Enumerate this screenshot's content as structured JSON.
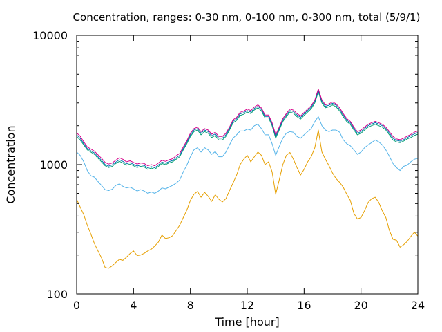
{
  "chart_data": {
    "type": "line",
    "title": "Concentration, ranges: 0-30 nm, 0-100 nm, 0-300 nm, total (5/9/1)",
    "xlabel": "Time [hour]",
    "ylabel": "Concentration",
    "xlim": [
      0,
      24
    ],
    "ylim": [
      100,
      10000
    ],
    "yscale": "log",
    "grid": false,
    "legend": "none",
    "x_ticks": [
      0,
      4,
      8,
      12,
      16,
      20,
      24
    ],
    "x_tick_labels": [
      "0",
      "4",
      "8",
      "12",
      "16",
      "20",
      "24"
    ],
    "y_ticks": [
      100,
      1000,
      10000
    ],
    "y_tick_labels": [
      "100",
      "1000",
      "10000"
    ],
    "series": [
      {
        "color": "#e69f00",
        "x": [
          0,
          0.25,
          0.5,
          0.75,
          1,
          1.25,
          1.5,
          1.75,
          2,
          2.25,
          2.5,
          2.75,
          3,
          3.25,
          3.5,
          3.75,
          4,
          4.25,
          4.5,
          4.75,
          5,
          5.25,
          5.5,
          5.75,
          6,
          6.25,
          6.5,
          6.75,
          7,
          7.25,
          7.5,
          7.75,
          8,
          8.25,
          8.5,
          8.75,
          9,
          9.25,
          9.5,
          9.75,
          10,
          10.25,
          10.5,
          10.75,
          11,
          11.25,
          11.5,
          11.75,
          12,
          12.25,
          12.5,
          12.75,
          13,
          13.25,
          13.5,
          13.75,
          14,
          14.25,
          14.5,
          14.75,
          15,
          15.25,
          15.5,
          15.75,
          16,
          16.25,
          16.5,
          16.75,
          17,
          17.25,
          17.5,
          17.75,
          18,
          18.25,
          18.5,
          18.75,
          19,
          19.25,
          19.5,
          19.75,
          20,
          20.25,
          20.5,
          20.75,
          21,
          21.25,
          21.5,
          21.75,
          22,
          22.25,
          22.5,
          22.75,
          23,
          23.25,
          23.5,
          23.75,
          24
        ],
        "y": [
          540,
          470,
          410,
          340,
          290,
          245,
          215,
          190,
          160,
          158,
          165,
          175,
          185,
          182,
          192,
          205,
          215,
          198,
          200,
          206,
          215,
          222,
          235,
          252,
          285,
          268,
          272,
          282,
          310,
          340,
          390,
          445,
          530,
          590,
          620,
          560,
          610,
          570,
          520,
          585,
          540,
          515,
          545,
          630,
          720,
          830,
          1000,
          1100,
          1180,
          1050,
          1150,
          1250,
          1180,
          1000,
          1050,
          880,
          590,
          760,
          1000,
          1180,
          1240,
          1100,
          950,
          830,
          920,
          1050,
          1150,
          1350,
          1850,
          1250,
          1100,
          980,
          860,
          780,
          730,
          670,
          590,
          530,
          420,
          380,
          390,
          440,
          510,
          545,
          560,
          510,
          440,
          390,
          310,
          265,
          260,
          230,
          240,
          255,
          278,
          300,
          280
        ]
      },
      {
        "color": "#56b4e9",
        "x": [
          0,
          0.25,
          0.5,
          0.75,
          1,
          1.25,
          1.5,
          1.75,
          2,
          2.25,
          2.5,
          2.75,
          3,
          3.25,
          3.5,
          3.75,
          4,
          4.25,
          4.5,
          4.75,
          5,
          5.25,
          5.5,
          5.75,
          6,
          6.25,
          6.5,
          6.75,
          7,
          7.25,
          7.5,
          7.75,
          8,
          8.25,
          8.5,
          8.75,
          9,
          9.25,
          9.5,
          9.75,
          10,
          10.25,
          10.5,
          10.75,
          11,
          11.25,
          11.5,
          11.75,
          12,
          12.25,
          12.5,
          12.75,
          13,
          13.25,
          13.5,
          13.75,
          14,
          14.25,
          14.5,
          14.75,
          15,
          15.25,
          15.5,
          15.75,
          16,
          16.25,
          16.5,
          16.75,
          17,
          17.25,
          17.5,
          17.75,
          18,
          18.25,
          18.5,
          18.75,
          19,
          19.25,
          19.5,
          19.75,
          20,
          20.25,
          20.5,
          20.75,
          21,
          21.25,
          21.5,
          21.75,
          22,
          22.25,
          22.5,
          22.75,
          23,
          23.25,
          23.5,
          23.75,
          24
        ],
        "y": [
          1250,
          1180,
          1050,
          900,
          820,
          800,
          740,
          690,
          640,
          630,
          645,
          690,
          710,
          680,
          660,
          670,
          650,
          625,
          640,
          625,
          600,
          615,
          600,
          625,
          660,
          650,
          670,
          690,
          720,
          760,
          880,
          990,
          1150,
          1300,
          1350,
          1250,
          1350,
          1300,
          1200,
          1260,
          1150,
          1150,
          1250,
          1420,
          1600,
          1700,
          1820,
          1820,
          1880,
          1850,
          2000,
          2050,
          1900,
          1700,
          1700,
          1450,
          1180,
          1380,
          1600,
          1750,
          1800,
          1780,
          1650,
          1600,
          1700,
          1800,
          1900,
          2150,
          2350,
          2000,
          1850,
          1800,
          1850,
          1850,
          1780,
          1560,
          1450,
          1400,
          1300,
          1200,
          1250,
          1350,
          1420,
          1480,
          1550,
          1500,
          1420,
          1300,
          1160,
          1020,
          950,
          900,
          970,
          990,
          1050,
          1100,
          1120
        ]
      },
      {
        "color": "#009e73",
        "x": [
          0,
          0.25,
          0.5,
          0.75,
          1,
          1.25,
          1.5,
          1.75,
          2,
          2.25,
          2.5,
          2.75,
          3,
          3.25,
          3.5,
          3.75,
          4,
          4.25,
          4.5,
          4.75,
          5,
          5.25,
          5.5,
          5.75,
          6,
          6.25,
          6.5,
          6.75,
          7,
          7.25,
          7.5,
          7.75,
          8,
          8.25,
          8.5,
          8.75,
          9,
          9.25,
          9.5,
          9.75,
          10,
          10.25,
          10.5,
          10.75,
          11,
          11.25,
          11.5,
          11.75,
          12,
          12.25,
          12.5,
          12.75,
          13,
          13.25,
          13.5,
          13.75,
          14,
          14.25,
          14.5,
          14.75,
          15,
          15.25,
          15.5,
          15.75,
          16,
          16.25,
          16.5,
          16.75,
          17,
          17.25,
          17.5,
          17.75,
          18,
          18.25,
          18.5,
          18.75,
          19,
          19.25,
          19.5,
          19.75,
          20,
          20.25,
          20.5,
          20.75,
          21,
          21.25,
          21.5,
          21.75,
          22,
          22.25,
          22.5,
          22.75,
          23,
          23.25,
          23.5,
          23.75,
          24
        ],
        "y": [
          1650,
          1550,
          1420,
          1300,
          1250,
          1200,
          1120,
          1050,
          980,
          950,
          970,
          1020,
          1060,
          1030,
          990,
          1010,
          980,
          950,
          970,
          960,
          920,
          940,
          920,
          970,
          1020,
          1000,
          1030,
          1050,
          1100,
          1150,
          1300,
          1450,
          1650,
          1800,
          1850,
          1700,
          1800,
          1750,
          1620,
          1680,
          1550,
          1550,
          1650,
          1850,
          2100,
          2200,
          2400,
          2450,
          2550,
          2480,
          2650,
          2750,
          2600,
          2300,
          2300,
          2000,
          1600,
          1850,
          2150,
          2350,
          2550,
          2500,
          2350,
          2250,
          2400,
          2550,
          2700,
          3000,
          3650,
          3000,
          2750,
          2800,
          2900,
          2800,
          2600,
          2350,
          2150,
          2050,
          1850,
          1700,
          1750,
          1850,
          1950,
          2000,
          2050,
          2000,
          1950,
          1850,
          1700,
          1550,
          1500,
          1480,
          1520,
          1580,
          1620,
          1680,
          1720
        ]
      },
      {
        "color": "#0072b2",
        "x": [
          0,
          0.25,
          0.5,
          0.75,
          1,
          1.25,
          1.5,
          1.75,
          2,
          2.25,
          2.5,
          2.75,
          3,
          3.25,
          3.5,
          3.75,
          4,
          4.25,
          4.5,
          4.75,
          5,
          5.25,
          5.5,
          5.75,
          6,
          6.25,
          6.5,
          6.75,
          7,
          7.25,
          7.5,
          7.75,
          8,
          8.25,
          8.5,
          8.75,
          9,
          9.25,
          9.5,
          9.75,
          10,
          10.25,
          10.5,
          10.75,
          11,
          11.25,
          11.5,
          11.75,
          12,
          12.25,
          12.5,
          12.75,
          13,
          13.25,
          13.5,
          13.75,
          14,
          14.25,
          14.5,
          14.75,
          15,
          15.25,
          15.5,
          15.75,
          16,
          16.25,
          16.5,
          16.75,
          17,
          17.25,
          17.5,
          17.75,
          18,
          18.25,
          18.5,
          18.75,
          19,
          19.25,
          19.5,
          19.75,
          20,
          20.25,
          20.5,
          20.75,
          21,
          21.25,
          21.5,
          21.75,
          22,
          22.25,
          22.5,
          22.75,
          23,
          23.25,
          23.5,
          23.75,
          24
        ],
        "y": [
          1700,
          1600,
          1450,
          1330,
          1280,
          1230,
          1150,
          1080,
          1000,
          975,
          995,
          1045,
          1090,
          1060,
          1015,
          1035,
          1005,
          975,
          995,
          985,
          945,
          965,
          945,
          995,
          1045,
          1025,
          1055,
          1075,
          1130,
          1180,
          1330,
          1490,
          1700,
          1850,
          1900,
          1750,
          1850,
          1800,
          1670,
          1730,
          1600,
          1600,
          1700,
          1900,
          2160,
          2260,
          2470,
          2520,
          2620,
          2550,
          2720,
          2830,
          2670,
          2360,
          2360,
          2060,
          1650,
          1900,
          2210,
          2420,
          2620,
          2570,
          2420,
          2320,
          2470,
          2620,
          2780,
          3080,
          3750,
          3080,
          2830,
          2880,
          2980,
          2880,
          2680,
          2420,
          2210,
          2110,
          1900,
          1750,
          1800,
          1900,
          2000,
          2060,
          2110,
          2060,
          2000,
          1900,
          1750,
          1600,
          1540,
          1520,
          1560,
          1620,
          1670,
          1730,
          1770
        ]
      },
      {
        "color": "#d6008a",
        "x": [
          0,
          0.25,
          0.5,
          0.75,
          1,
          1.25,
          1.5,
          1.75,
          2,
          2.25,
          2.5,
          2.75,
          3,
          3.25,
          3.5,
          3.75,
          4,
          4.25,
          4.5,
          4.75,
          5,
          5.25,
          5.5,
          5.75,
          6,
          6.25,
          6.5,
          6.75,
          7,
          7.25,
          7.5,
          7.75,
          8,
          8.25,
          8.5,
          8.75,
          9,
          9.25,
          9.5,
          9.75,
          10,
          10.25,
          10.5,
          10.75,
          11,
          11.25,
          11.5,
          11.75,
          12,
          12.25,
          12.5,
          12.75,
          13,
          13.25,
          13.5,
          13.75,
          14,
          14.25,
          14.5,
          14.75,
          15,
          15.25,
          15.5,
          15.75,
          16,
          16.25,
          16.5,
          16.75,
          17,
          17.25,
          17.5,
          17.75,
          18,
          18.25,
          18.5,
          18.75,
          19,
          19.25,
          19.5,
          19.75,
          20,
          20.25,
          20.5,
          20.75,
          21,
          21.25,
          21.5,
          21.75,
          22,
          22.25,
          22.5,
          22.75,
          23,
          23.25,
          23.5,
          23.75,
          24
        ],
        "y": [
          1760,
          1660,
          1500,
          1370,
          1320,
          1270,
          1190,
          1120,
          1040,
          1010,
          1030,
          1080,
          1130,
          1100,
          1050,
          1070,
          1040,
          1010,
          1030,
          1020,
          980,
          1000,
          980,
          1030,
          1080,
          1060,
          1090,
          1110,
          1170,
          1220,
          1370,
          1530,
          1750,
          1900,
          1950,
          1800,
          1900,
          1850,
          1720,
          1780,
          1650,
          1650,
          1750,
          1950,
          2220,
          2320,
          2540,
          2590,
          2690,
          2620,
          2790,
          2900,
          2740,
          2420,
          2420,
          2110,
          1700,
          1950,
          2270,
          2480,
          2690,
          2640,
          2480,
          2380,
          2530,
          2690,
          2850,
          3160,
          3850,
          3160,
          2900,
          2950,
          3050,
          2950,
          2750,
          2480,
          2270,
          2160,
          1950,
          1800,
          1850,
          1950,
          2050,
          2110,
          2160,
          2110,
          2050,
          1950,
          1800,
          1650,
          1580,
          1560,
          1600,
          1660,
          1710,
          1780,
          1820
        ]
      }
    ]
  }
}
